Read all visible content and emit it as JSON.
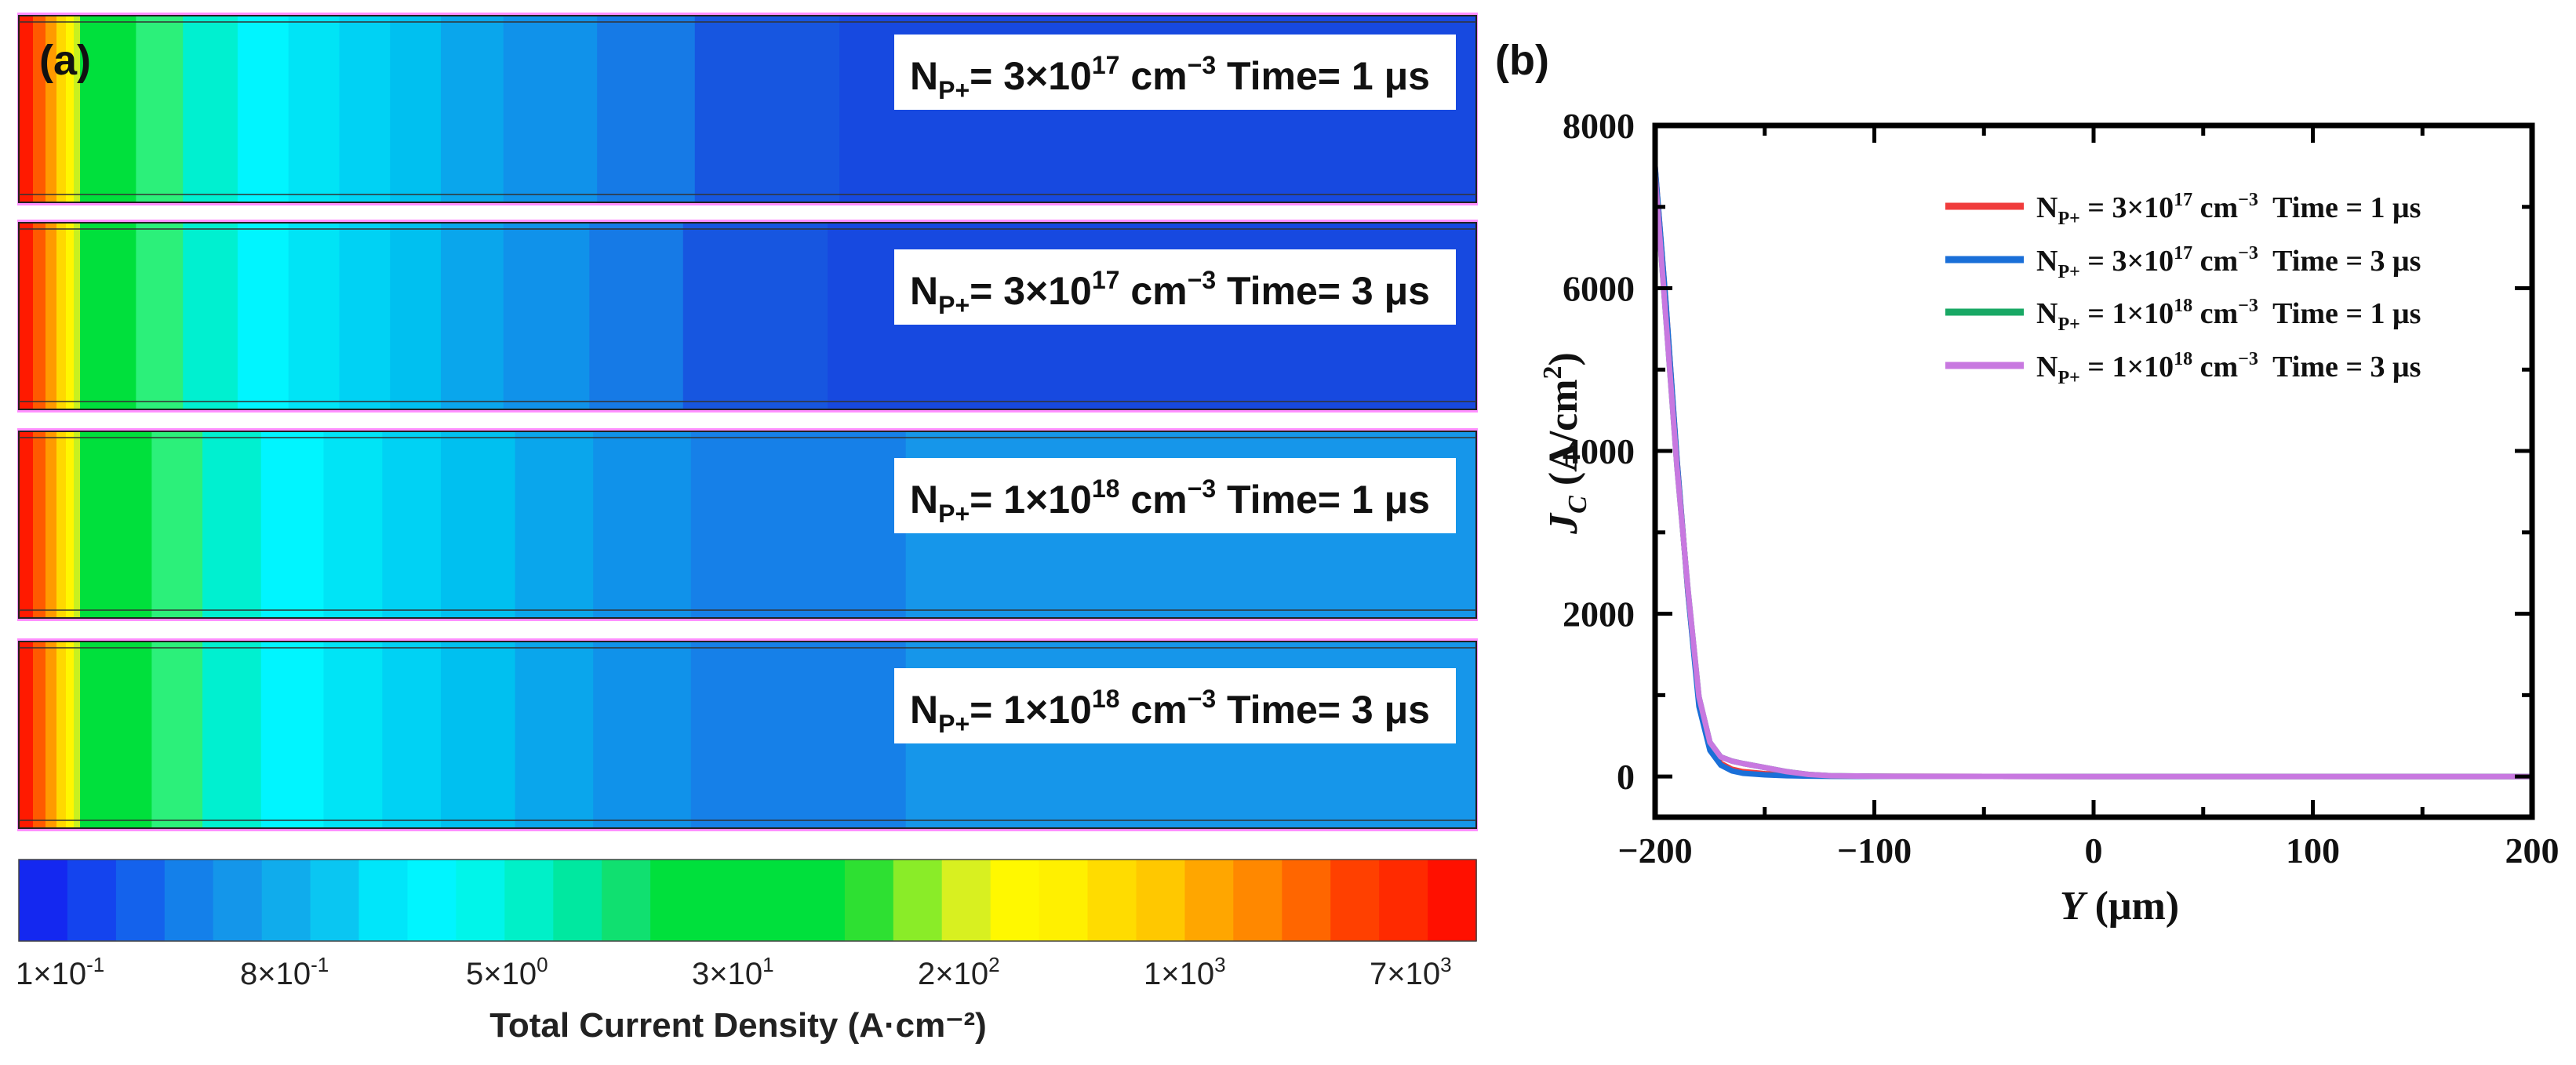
{
  "panel_a": {
    "label": "(a)",
    "panels": [
      {
        "np_prefix": "N",
        "np_sub": "P+",
        "np_mid": "= 3×10",
        "np_exp": "17",
        "np_unit": " cm",
        "np_unit_exp": "−3",
        "time_text": " Time= 1 μs",
        "bands": [
          "#ff2a00",
          "#ffa600",
          "#00e03c",
          "#2cf07a",
          "#00f0d0",
          "#00f5ff",
          "#00e4f6",
          "#00d2f4",
          "#00c0f0",
          "#0aa6ec",
          "#1092ea",
          "#167ae6",
          "#1756e0",
          "#1749e0"
        ],
        "edges": [
          0,
          60,
          150,
          300,
          420,
          560,
          690,
          820,
          950,
          1080,
          1240,
          1480,
          1730,
          2100,
          3730
        ]
      },
      {
        "np_prefix": "N",
        "np_sub": "P+",
        "np_mid": "= 3×10",
        "np_exp": "17",
        "np_unit": " cm",
        "np_unit_exp": "−3",
        "time_text": " Time= 3 μs",
        "bands": [
          "#ff2a00",
          "#ffa600",
          "#00e03c",
          "#2cf07a",
          "#00f0d0",
          "#00f5ff",
          "#00e4f6",
          "#00d2f4",
          "#00c0f0",
          "#0aa6ec",
          "#1092ea",
          "#167ae6",
          "#1756e0",
          "#1749e0"
        ],
        "edges": [
          0,
          60,
          150,
          300,
          420,
          560,
          690,
          820,
          950,
          1080,
          1240,
          1460,
          1700,
          2070,
          3730
        ]
      },
      {
        "np_prefix": "N",
        "np_sub": "P+",
        "np_mid": "= 1×10",
        "np_exp": "18",
        "np_unit": " cm",
        "np_unit_exp": "−3",
        "time_text": " Time= 1 μs",
        "bands": [
          "#ff2a00",
          "#ffa600",
          "#00e03c",
          "#2cf07a",
          "#00f0d0",
          "#00f5ff",
          "#00e4f6",
          "#00d2f4",
          "#00c0f0",
          "#0aa6ec",
          "#1092ea",
          "#1680e8",
          "#1696ea"
        ],
        "edges": [
          0,
          60,
          150,
          340,
          470,
          620,
          780,
          930,
          1080,
          1270,
          1470,
          1720,
          2270,
          3730
        ]
      },
      {
        "np_prefix": "N",
        "np_sub": "P+",
        "np_mid": "= 1×10",
        "np_exp": "18",
        "np_unit": " cm",
        "np_unit_exp": "−3",
        "time_text": " Time= 3 μs",
        "bands": [
          "#ff2a00",
          "#ffa600",
          "#00e03c",
          "#2cf07a",
          "#00f0d0",
          "#00f5ff",
          "#00e4f6",
          "#00d2f4",
          "#00c0f0",
          "#0aa6ec",
          "#1092ea",
          "#1680e8",
          "#1696ea"
        ],
        "edges": [
          0,
          60,
          150,
          340,
          470,
          620,
          780,
          930,
          1080,
          1270,
          1470,
          1720,
          2270,
          3730
        ]
      }
    ],
    "colorbar": {
      "colors": [
        "#1428f0",
        "#1444ee",
        "#1462ec",
        "#1480ea",
        "#1496ea",
        "#10acec",
        "#0ac6f2",
        "#00e6fa",
        "#00f5ff",
        "#00f5ea",
        "#00f0c8",
        "#00e8a0",
        "#10e070",
        "#00e03c",
        "#00e03c",
        "#00e03c",
        "#00e03c",
        "#2ee032",
        "#8aec28",
        "#d8f020",
        "#fff800",
        "#fff000",
        "#ffdc00",
        "#ffc800",
        "#ffa600",
        "#ff8800",
        "#ff6600",
        "#ff4000",
        "#ff2a00",
        "#ff1000"
      ],
      "tick_labels": [
        {
          "base": "1×10",
          "exp": "-1"
        },
        {
          "base": "8×10",
          "exp": "-1"
        },
        {
          "base": "5×10",
          "exp": "0"
        },
        {
          "base": "3×10",
          "exp": "1"
        },
        {
          "base": "2×10",
          "exp": "2"
        },
        {
          "base": "1×10",
          "exp": "3"
        },
        {
          "base": "7×10",
          "exp": "3"
        }
      ],
      "title": "Total Current Density (A·cm⁻²)"
    }
  },
  "chart_data": {
    "type": "line",
    "panel_label": "(b)",
    "title": "",
    "xlabel": "Y",
    "xlabel_unit": " (μm)",
    "ylabel": "J",
    "ylabel_sub": "C",
    "ylabel_unit": " (A/cm",
    "ylabel_unit_exp": "2",
    "ylabel_close": ")",
    "xlim": [
      -200,
      200
    ],
    "ylim": [
      -500,
      8000
    ],
    "xticks": [
      -200,
      -100,
      0,
      100,
      200
    ],
    "xtick_labels": [
      "−200",
      "−100",
      "0",
      "100",
      "200"
    ],
    "yticks": [
      0,
      2000,
      4000,
      6000,
      8000
    ],
    "ytick_labels": [
      "0",
      "2000",
      "4000",
      "6000",
      "8000"
    ],
    "legend_position": "top-right",
    "series": [
      {
        "name": "N_P+ = 3×10^17 cm^-3 Time = 1 μs",
        "legend_base": "N",
        "legend_sub": "P+",
        "legend_mid": " = 3×10",
        "legend_exp": "17",
        "legend_unit": " cm",
        "legend_unit_exp": "−3",
        "legend_time": "  Time = 1 μs",
        "color": "#f03c3c",
        "x": [
          -200,
          -195,
          -190,
          -185,
          -180,
          -175,
          -170,
          -165,
          -160,
          -150,
          -140,
          -130,
          -120,
          -100,
          0,
          100,
          200
        ],
        "y": [
          7500,
          5800,
          3900,
          2250,
          900,
          350,
          160,
          90,
          60,
          35,
          20,
          10,
          5,
          2,
          0,
          0,
          0
        ]
      },
      {
        "name": "N_P+ = 3×10^17 cm^-3 Time = 3 μs",
        "legend_base": "N",
        "legend_sub": "P+",
        "legend_mid": " = 3×10",
        "legend_exp": "17",
        "legend_unit": " cm",
        "legend_unit_exp": "−3",
        "legend_time": "  Time = 3 μs",
        "color": "#1a6fd8",
        "x": [
          -200,
          -195,
          -190,
          -185,
          -180,
          -175,
          -170,
          -165,
          -160,
          -150,
          -140,
          -130,
          -120,
          -100,
          0,
          100,
          200
        ],
        "y": [
          7500,
          5800,
          3900,
          2250,
          860,
          320,
          140,
          70,
          40,
          20,
          10,
          5,
          2,
          1,
          0,
          0,
          0
        ]
      },
      {
        "name": "N_P+ = 1×10^18 cm^-3 Time = 1 μs",
        "legend_base": "N",
        "legend_sub": "P+",
        "legend_mid": " = 1×10",
        "legend_exp": "18",
        "legend_unit": " cm",
        "legend_unit_exp": "−3",
        "legend_time": "  Time = 1 μs",
        "color": "#19a865",
        "x": [
          -200,
          -195,
          -190,
          -185,
          -180,
          -175,
          -170,
          -165,
          -160,
          -150,
          -140,
          -130,
          -120,
          -100,
          0,
          100,
          200
        ],
        "y": [
          7400,
          5600,
          3800,
          2300,
          980,
          420,
          240,
          190,
          160,
          110,
          60,
          25,
          10,
          3,
          0,
          0,
          0
        ]
      },
      {
        "name": "N_P+ = 1×10^18 cm^-3 Time = 3 μs",
        "legend_base": "N",
        "legend_sub": "P+",
        "legend_mid": " = 1×10",
        "legend_exp": "18",
        "legend_unit": " cm",
        "legend_unit_exp": "−3",
        "legend_time": "  Time = 3 μs",
        "color": "#c878e0",
        "x": [
          -200,
          -195,
          -190,
          -185,
          -180,
          -175,
          -170,
          -165,
          -160,
          -150,
          -140,
          -130,
          -120,
          -100,
          0,
          100,
          200
        ],
        "y": [
          7400,
          5600,
          3800,
          2300,
          980,
          420,
          240,
          190,
          160,
          110,
          60,
          25,
          10,
          3,
          0,
          0,
          0
        ]
      }
    ]
  }
}
